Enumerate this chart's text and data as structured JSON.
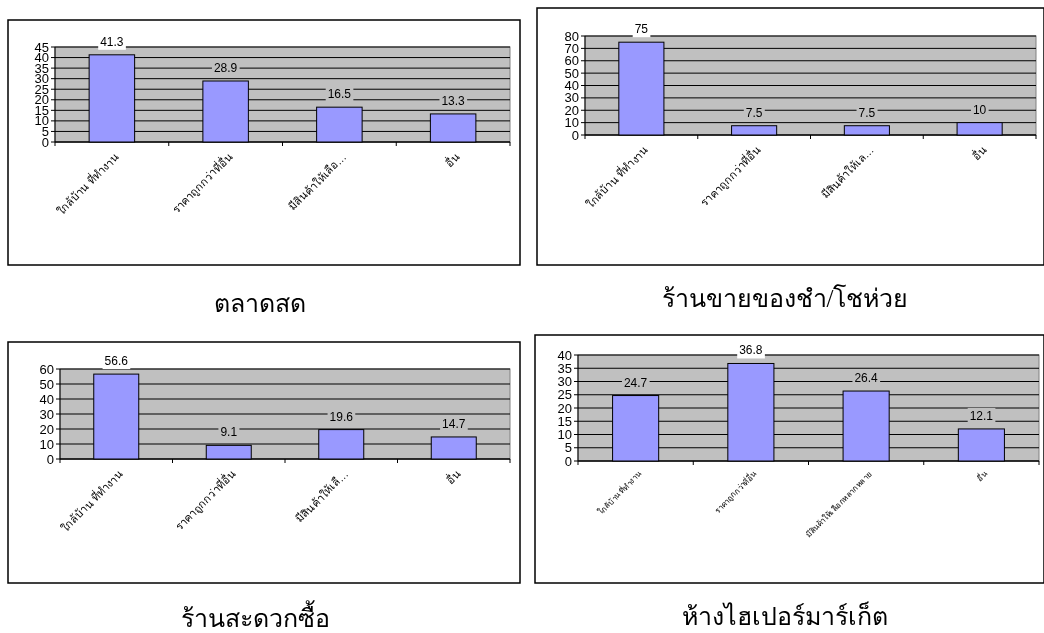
{
  "chart_data": [
    {
      "type": "bar",
      "title": "ตลาดสด",
      "categories": [
        "ใกล้บ้าน ที่ทำงาน",
        "ราคาถูกกว่าที่อื่น",
        "มีสินค้าให้เลือ…",
        "อื่น"
      ],
      "values": [
        41.3,
        28.9,
        16.5,
        13.3
      ],
      "color": "#9999ff",
      "ylim": [
        0,
        45
      ],
      "yticks": [
        0,
        5,
        10,
        15,
        20,
        25,
        30,
        35,
        40,
        45
      ],
      "grid": "y",
      "data_labels": true
    },
    {
      "type": "bar",
      "title": "ร้านขายของชำ/โชห่วย",
      "categories": [
        "ใกล้บ้าน ที่ทำงาน",
        "ราคาถูกกว่าที่อื่น",
        "มีสินค้าให้เล…",
        "อื่น"
      ],
      "values": [
        75,
        7.5,
        7.5,
        10
      ],
      "color": "#9999ff",
      "ylim": [
        0,
        80
      ],
      "yticks": [
        0,
        10,
        20,
        30,
        40,
        50,
        60,
        70,
        80
      ],
      "grid": "y",
      "data_labels": true
    },
    {
      "type": "bar",
      "title": "ร้านสะดวกซื้อ",
      "categories": [
        "ใกล้บ้าน ที่ทำงาน",
        "ราคาถูกกว่าที่อื่น",
        "มีสินค้าให้เลื…",
        "อื่น"
      ],
      "values": [
        56.6,
        9.1,
        19.6,
        14.7
      ],
      "color": "#9999ff",
      "ylim": [
        0,
        60
      ],
      "yticks": [
        0,
        10,
        20,
        30,
        40,
        50,
        60
      ],
      "grid": "y",
      "data_labels": true
    },
    {
      "type": "bar",
      "title": "ห้างไฮเปอร์มาร์เก็ต",
      "categories": [
        "ใกล้บ้าน ที่ทำงาน",
        "ราคาถูกกว่าที่อื่น",
        "มีสินค้าให้เลือกหลากหลาย",
        "อื่น"
      ],
      "values": [
        24.7,
        36.8,
        26.4,
        12.1
      ],
      "color": "#9999ff",
      "ylim": [
        0,
        40
      ],
      "yticks": [
        0,
        5,
        10,
        15,
        20,
        25,
        30,
        35,
        40
      ],
      "grid": "y",
      "data_labels": true
    }
  ]
}
